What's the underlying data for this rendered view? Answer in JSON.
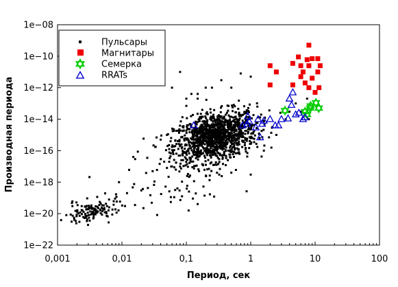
{
  "chart_data": {
    "type": "scatter",
    "xlabel": "Период, сек",
    "ylabel": "Производная периода",
    "xscale": "log",
    "yscale": "log",
    "xlim": [
      0.001,
      100
    ],
    "ylim": [
      1e-22,
      1e-08
    ],
    "x_tick_labels": [
      "0,001",
      "0,01",
      "0,1",
      "1",
      "10",
      "100"
    ],
    "y_tick_labels": [
      "1e−22",
      "1e−20",
      "1e−18",
      "1e−16",
      "1e−14",
      "1e−12",
      "1e−10",
      "1e−08"
    ],
    "grid": false,
    "legend_position": "top-left",
    "series": [
      {
        "name": "Пульсары",
        "marker": "square-small",
        "color": "#000000",
        "clusters": [
          {
            "logx_mean": -0.55,
            "logy_mean": -15.1,
            "logx_sd": 0.32,
            "logy_sd": 0.75,
            "count": 1250
          },
          {
            "logx_mean": -2.45,
            "logy_mean": -19.9,
            "logx_sd": 0.22,
            "logy_sd": 0.35,
            "count": 130
          },
          {
            "logx_mean": -1.0,
            "logy_mean": -17.6,
            "logx_sd": 0.5,
            "logy_sd": 1.0,
            "count": 70
          }
        ],
        "points": [
          {
            "x": 0.0017,
            "y": 3e-20
          },
          {
            "x": 0.0017,
            "y": 6e-20
          },
          {
            "x": 0.0019,
            "y": 1.5e-20
          },
          {
            "x": 0.009,
            "y": 1e-18
          },
          {
            "x": 0.012,
            "y": 2e-19
          },
          {
            "x": 0.02,
            "y": 3e-19
          },
          {
            "x": 0.015,
            "y": 4e-17
          },
          {
            "x": 0.03,
            "y": 5e-18
          },
          {
            "x": 0.05,
            "y": 8e-18
          },
          {
            "x": 0.06,
            "y": 1e-17
          },
          {
            "x": 0.08,
            "y": 1e-17
          },
          {
            "x": 0.1,
            "y": 2e-13
          },
          {
            "x": 0.1,
            "y": 7e-14
          },
          {
            "x": 0.09,
            "y": 3e-15
          },
          {
            "x": 0.12,
            "y": 4e-13
          },
          {
            "x": 0.15,
            "y": 4e-13
          },
          {
            "x": 0.15,
            "y": 2e-13
          },
          {
            "x": 0.2,
            "y": 1e-12
          },
          {
            "x": 0.25,
            "y": 1e-12
          },
          {
            "x": 0.04,
            "y": 2.5e-12
          },
          {
            "x": 0.06,
            "y": 1e-12
          },
          {
            "x": 0.08,
            "y": 1e-11
          },
          {
            "x": 0.05,
            "y": 1e-15
          },
          {
            "x": 0.04,
            "y": 5e-16
          },
          {
            "x": 0.3,
            "y": 4e-18
          },
          {
            "x": 0.5,
            "y": 4e-18
          },
          {
            "x": 1.0,
            "y": 3e-18
          },
          {
            "x": 1.6,
            "y": 1e-16
          },
          {
            "x": 2.5,
            "y": 1e-15
          },
          {
            "x": 3.5,
            "y": 1e-14
          },
          {
            "x": 4.0,
            "y": 3e-14
          },
          {
            "x": 5.0,
            "y": 1e-13
          },
          {
            "x": 6.0,
            "y": 3e-14
          },
          {
            "x": 8.0,
            "y": 1e-14
          },
          {
            "x": 7.5,
            "y": 2e-13
          },
          {
            "x": 0.7,
            "y": 8e-12
          },
          {
            "x": 1.0,
            "y": 5e-12
          },
          {
            "x": 0.35,
            "y": 3e-12
          },
          {
            "x": 0.5,
            "y": 1e-12
          }
        ]
      },
      {
        "name": "Магнитары",
        "marker": "square",
        "color": "#ee0000",
        "points": [
          {
            "x": 8.0,
            "y": 5e-10
          },
          {
            "x": 5.5,
            "y": 9e-11
          },
          {
            "x": 7.5,
            "y": 6e-11
          },
          {
            "x": 9.0,
            "y": 7e-11
          },
          {
            "x": 11.0,
            "y": 7e-11
          },
          {
            "x": 4.5,
            "y": 3.5e-11
          },
          {
            "x": 6.0,
            "y": 2.5e-11
          },
          {
            "x": 8.0,
            "y": 2.5e-11
          },
          {
            "x": 12.0,
            "y": 2.5e-11
          },
          {
            "x": 2.0,
            "y": 2.5e-11
          },
          {
            "x": 2.5,
            "y": 1e-11
          },
          {
            "x": 6.5,
            "y": 1e-11
          },
          {
            "x": 11.0,
            "y": 1e-11
          },
          {
            "x": 6.0,
            "y": 5e-12
          },
          {
            "x": 9.0,
            "y": 4e-12
          },
          {
            "x": 7.0,
            "y": 2e-12
          },
          {
            "x": 4.5,
            "y": 1.5e-12
          },
          {
            "x": 11.5,
            "y": 1e-12
          },
          {
            "x": 8.0,
            "y": 1e-12
          },
          {
            "x": 10.0,
            "y": 5e-13
          },
          {
            "x": 2.0,
            "y": 1.5e-12
          }
        ]
      },
      {
        "name": "Семерка",
        "marker": "hexagram-open",
        "color": "#00cc00",
        "points": [
          {
            "x": 3.4,
            "y": 3.5e-14
          },
          {
            "x": 7.0,
            "y": 3e-14
          },
          {
            "x": 8.4,
            "y": 5e-14
          },
          {
            "x": 10.3,
            "y": 1.1e-13
          },
          {
            "x": 11.4,
            "y": 5e-14
          },
          {
            "x": 8.5,
            "y": 7e-14
          },
          {
            "x": 7.5,
            "y": 2e-14
          }
        ]
      },
      {
        "name": "RRATs",
        "marker": "triangle-open",
        "color": "#0000cc",
        "points": [
          {
            "x": 0.13,
            "y": 4e-15
          },
          {
            "x": 0.9,
            "y": 1.5e-14
          },
          {
            "x": 0.88,
            "y": 5e-15
          },
          {
            "x": 0.95,
            "y": 7e-15
          },
          {
            "x": 1.2,
            "y": 3e-15
          },
          {
            "x": 1.3,
            "y": 1e-14
          },
          {
            "x": 1.5,
            "y": 5e-15
          },
          {
            "x": 1.6,
            "y": 8e-15
          },
          {
            "x": 2.0,
            "y": 1e-14
          },
          {
            "x": 2.4,
            "y": 4e-15
          },
          {
            "x": 3.0,
            "y": 1e-14
          },
          {
            "x": 3.8,
            "y": 1.1e-14
          },
          {
            "x": 4.0,
            "y": 2e-13
          },
          {
            "x": 4.3,
            "y": 8e-14
          },
          {
            "x": 4.5,
            "y": 5e-13
          },
          {
            "x": 5.0,
            "y": 2e-14
          },
          {
            "x": 5.6,
            "y": 2.5e-14
          },
          {
            "x": 6.5,
            "y": 1e-14
          },
          {
            "x": 7.0,
            "y": 1.3e-14
          },
          {
            "x": 2.7,
            "y": 4e-15
          },
          {
            "x": 1.4,
            "y": 7e-16
          },
          {
            "x": 0.75,
            "y": 4e-15
          }
        ]
      }
    ]
  }
}
